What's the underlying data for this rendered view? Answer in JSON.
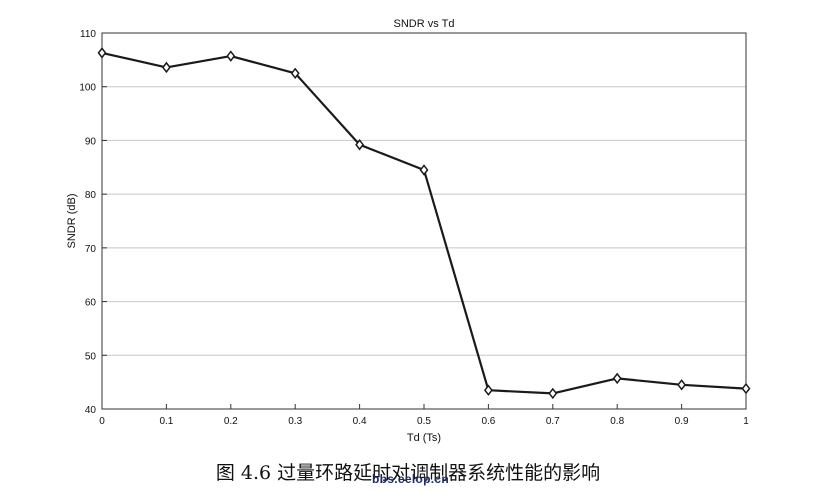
{
  "chart_data": {
    "type": "line",
    "title": "SNDR vs Td",
    "xlabel": "Td (Ts)",
    "ylabel": "SNDR (dB)",
    "xlim": [
      0,
      1
    ],
    "ylim": [
      40,
      110
    ],
    "xticks": [
      "0",
      "0.1",
      "0.2",
      "0.3",
      "0.4",
      "0.5",
      "0.6",
      "0.7",
      "0.8",
      "0.9",
      "1"
    ],
    "yticks": [
      "40",
      "50",
      "60",
      "70",
      "80",
      "90",
      "100",
      "110"
    ],
    "grid": "horizontal",
    "marker": "diamond",
    "series": [
      {
        "x": [
          0,
          0.1,
          0.2,
          0.3,
          0.4,
          0.5,
          0.6,
          0.7,
          0.8,
          0.9,
          1
        ],
        "y": [
          106.3,
          103.6,
          105.7,
          102.5,
          89.2,
          84.5,
          43.5,
          42.9,
          45.7,
          44.5,
          43.8
        ]
      }
    ]
  },
  "caption": "图 4.6  过量环路延时对调制器系统性能的影响",
  "watermark": "bbs.eelop.cn",
  "colors": {
    "line": "#1a1a1a",
    "grid": "#c8c8c8",
    "axis": "#333333"
  }
}
